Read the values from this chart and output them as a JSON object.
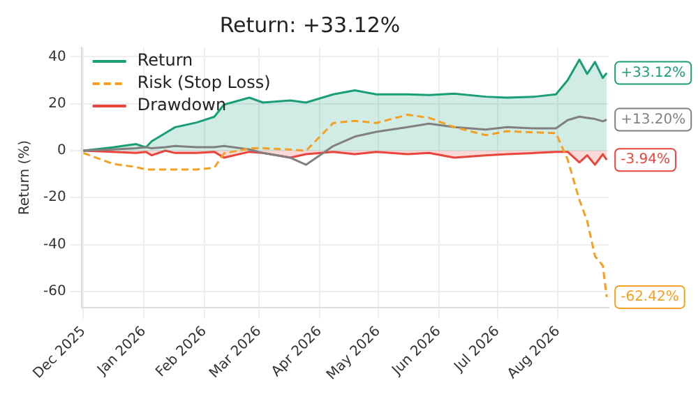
{
  "chart_data": {
    "type": "line",
    "title": "Return: +33.12%",
    "ylabel": "Return (%)",
    "x": [
      "2025-12-01",
      "2025-12-16",
      "2025-12-28",
      "2026-01-02",
      "2026-01-05",
      "2026-01-12",
      "2026-01-17",
      "2026-01-28",
      "2026-02-06",
      "2026-02-11",
      "2026-02-24",
      "2026-03-03",
      "2026-03-17",
      "2026-03-25",
      "2026-04-08",
      "2026-04-19",
      "2026-04-30",
      "2026-05-16",
      "2026-05-27",
      "2026-06-09",
      "2026-06-25",
      "2026-07-06",
      "2026-07-20",
      "2026-07-31",
      "2026-08-06",
      "2026-08-12",
      "2026-08-16",
      "2026-08-20",
      "2026-08-24",
      "2026-08-26"
    ],
    "series": [
      {
        "name": "Return",
        "type": "area",
        "color": "#1a9e77",
        "values": [
          0,
          1.4,
          2.8,
          1.4,
          4,
          7.5,
          10,
          12,
          14.4,
          19.6,
          22.6,
          20.5,
          21.4,
          20.5,
          24,
          25.7,
          24,
          24,
          23.7,
          24.3,
          23,
          22.6,
          23,
          24,
          30,
          38.8,
          32.7,
          37.8,
          31,
          33.1
        ]
      },
      {
        "name": "Risk (Stop Loss)",
        "type": "line",
        "line_style": "dashed",
        "color": "#f5a020",
        "values": [
          -1,
          -5.6,
          -7,
          -8,
          -8,
          -8,
          -8,
          -8,
          -7.3,
          -1.2,
          1,
          1,
          0.5,
          0,
          11.8,
          12.7,
          11.8,
          15.3,
          14,
          10,
          6.6,
          8.3,
          7.8,
          7.5,
          -3.8,
          -21,
          -30,
          -45,
          -49,
          -62.4
        ]
      },
      {
        "name": "Drawdown",
        "type": "area",
        "color": "#e8463c",
        "values": [
          0,
          -0.5,
          -1,
          -0.5,
          -2,
          0,
          -1,
          -1,
          -0.5,
          -3,
          -0.5,
          -1,
          -3,
          -1.5,
          -0.5,
          -1.5,
          -0.5,
          -1.5,
          -1,
          -3,
          -2,
          -1.5,
          -1,
          -0.5,
          -0.5,
          -5,
          -2,
          -6,
          -1.5,
          -3.9
        ]
      },
      {
        "type": "line",
        "color": "#808080",
        "values": [
          0,
          0.5,
          1,
          1.5,
          1,
          1.5,
          2,
          1.5,
          1.5,
          2,
          0.5,
          -1,
          -3,
          -6,
          2,
          6,
          8,
          10,
          11.5,
          10,
          9,
          10,
          9.5,
          9.5,
          13,
          14.5,
          14,
          13.5,
          12.5,
          13.2
        ]
      }
    ],
    "xlim": [
      "2025-11-30",
      "2026-08-27"
    ],
    "xticks": [
      {
        "value": "2025-12-01",
        "label": "Dec 2025"
      },
      {
        "value": "2026-01-01",
        "label": "Jan 2026"
      },
      {
        "value": "2026-02-01",
        "label": "Feb 2026"
      },
      {
        "value": "2026-03-01",
        "label": "Mar 2026"
      },
      {
        "value": "2026-04-01",
        "label": "Apr 2026"
      },
      {
        "value": "2026-05-01",
        "label": "May 2026"
      },
      {
        "value": "2026-06-01",
        "label": "Jun 2026"
      },
      {
        "value": "2026-07-01",
        "label": "Jul 2026"
      },
      {
        "value": "2026-08-01",
        "label": "Aug 2026"
      }
    ],
    "ylim": [
      -67,
      44
    ],
    "yticks": [
      -60,
      -40,
      -20,
      0,
      20,
      40
    ],
    "annotations": [
      {
        "text": "+33.12%",
        "x": "2026-08-26",
        "y": 33.12
      },
      {
        "text": "+13.20%",
        "x": "2026-08-26",
        "y": 13.2
      },
      {
        "text": "-3.94%",
        "x": "2026-08-26",
        "y": -3.94
      },
      {
        "text": "-62.42%",
        "x": "2026-08-26",
        "y": -62.42
      }
    ],
    "grid": true,
    "legend": "top left",
    "marker": "none"
  }
}
